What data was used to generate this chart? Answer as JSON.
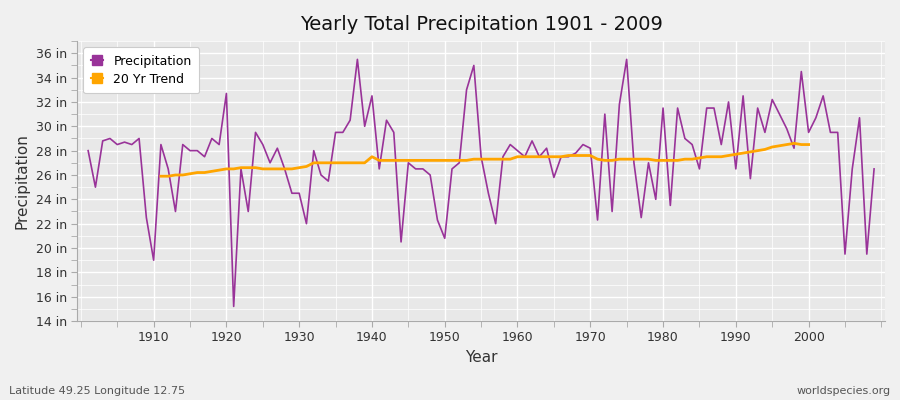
{
  "title": "Yearly Total Precipitation 1901 - 2009",
  "xlabel": "Year",
  "ylabel": "Precipitation",
  "subtitle": "Latitude 49.25 Longitude 12.75",
  "watermark": "worldspecies.org",
  "bg_color": "#f0f0f0",
  "plot_bg_color": "#e8e8e8",
  "grid_color": "#ffffff",
  "precip_color": "#993399",
  "trend_color": "#FFA500",
  "ylim": [
    14,
    37
  ],
  "yticks": [
    14,
    16,
    18,
    20,
    22,
    24,
    26,
    28,
    30,
    32,
    34,
    36
  ],
  "xlim": [
    1901,
    2009
  ],
  "xticks": [
    1910,
    1920,
    1930,
    1940,
    1950,
    1960,
    1970,
    1980,
    1990,
    2000
  ],
  "years": [
    1901,
    1902,
    1903,
    1904,
    1905,
    1906,
    1907,
    1908,
    1909,
    1910,
    1911,
    1912,
    1913,
    1914,
    1915,
    1916,
    1917,
    1918,
    1919,
    1920,
    1921,
    1922,
    1923,
    1924,
    1925,
    1926,
    1927,
    1928,
    1929,
    1930,
    1931,
    1932,
    1933,
    1934,
    1935,
    1936,
    1937,
    1938,
    1939,
    1940,
    1941,
    1942,
    1943,
    1944,
    1945,
    1946,
    1947,
    1948,
    1949,
    1950,
    1951,
    1952,
    1953,
    1954,
    1955,
    1956,
    1957,
    1958,
    1959,
    1960,
    1961,
    1962,
    1963,
    1964,
    1965,
    1966,
    1967,
    1968,
    1969,
    1970,
    1971,
    1972,
    1973,
    1974,
    1975,
    1976,
    1977,
    1978,
    1979,
    1980,
    1981,
    1982,
    1983,
    1984,
    1985,
    1986,
    1987,
    1988,
    1989,
    1990,
    1991,
    1992,
    1993,
    1994,
    1995,
    1996,
    1997,
    1998,
    1999,
    2000,
    2001,
    2002,
    2003,
    2004,
    2005,
    2006,
    2007,
    2008,
    2009
  ],
  "precip": [
    28.0,
    25.0,
    28.8,
    29.0,
    28.5,
    28.7,
    28.5,
    29.0,
    22.5,
    19.0,
    28.5,
    26.5,
    23.0,
    28.5,
    28.0,
    28.0,
    27.5,
    29.0,
    28.5,
    32.7,
    15.2,
    26.5,
    23.0,
    29.5,
    28.5,
    27.0,
    28.2,
    26.5,
    24.5,
    24.5,
    22.0,
    28.0,
    26.0,
    25.5,
    29.5,
    29.5,
    30.5,
    35.5,
    30.0,
    32.5,
    26.5,
    30.5,
    29.5,
    20.5,
    27.0,
    26.5,
    26.5,
    26.0,
    22.3,
    20.8,
    26.5,
    27.0,
    33.0,
    35.0,
    27.5,
    24.5,
    22.0,
    27.5,
    28.5,
    28.0,
    27.5,
    28.8,
    27.5,
    28.2,
    25.8,
    27.5,
    27.5,
    27.8,
    28.5,
    28.2,
    22.3,
    31.0,
    23.0,
    31.8,
    35.5,
    27.0,
    22.5,
    27.0,
    24.0,
    31.5,
    23.5,
    31.5,
    29.0,
    28.5,
    26.5,
    31.5,
    31.5,
    28.5,
    32.0,
    26.5,
    32.5,
    25.7,
    31.5,
    29.5,
    32.2,
    31.0,
    29.8,
    28.2,
    34.5,
    29.5,
    30.7,
    32.5,
    29.5,
    29.5,
    19.5,
    26.5,
    30.7,
    19.5,
    26.5
  ],
  "trend": [
    null,
    null,
    null,
    null,
    null,
    null,
    null,
    null,
    null,
    null,
    25.9,
    25.9,
    26.0,
    26.0,
    26.1,
    26.2,
    26.2,
    26.3,
    26.4,
    26.5,
    26.5,
    26.6,
    26.6,
    26.6,
    26.5,
    26.5,
    26.5,
    26.5,
    26.5,
    26.6,
    26.7,
    27.0,
    27.0,
    27.0,
    27.0,
    27.0,
    27.0,
    27.0,
    27.0,
    27.5,
    27.2,
    27.2,
    27.2,
    27.2,
    27.2,
    27.2,
    27.2,
    27.2,
    27.2,
    27.2,
    27.2,
    27.2,
    27.2,
    27.3,
    27.3,
    27.3,
    27.3,
    27.3,
    27.3,
    27.5,
    27.5,
    27.5,
    27.5,
    27.5,
    27.5,
    27.5,
    27.6,
    27.6,
    27.6,
    27.6,
    27.3,
    27.2,
    27.2,
    27.3,
    27.3,
    27.3,
    27.3,
    27.3,
    27.2,
    27.2,
    27.2,
    27.2,
    27.3,
    27.3,
    27.4,
    27.5,
    27.5,
    27.5,
    27.6,
    27.7,
    27.8,
    27.9,
    28.0,
    28.1,
    28.3,
    28.4,
    28.5,
    28.6,
    28.5,
    28.5,
    null,
    null,
    null,
    null,
    null,
    null,
    null,
    null,
    null
  ]
}
